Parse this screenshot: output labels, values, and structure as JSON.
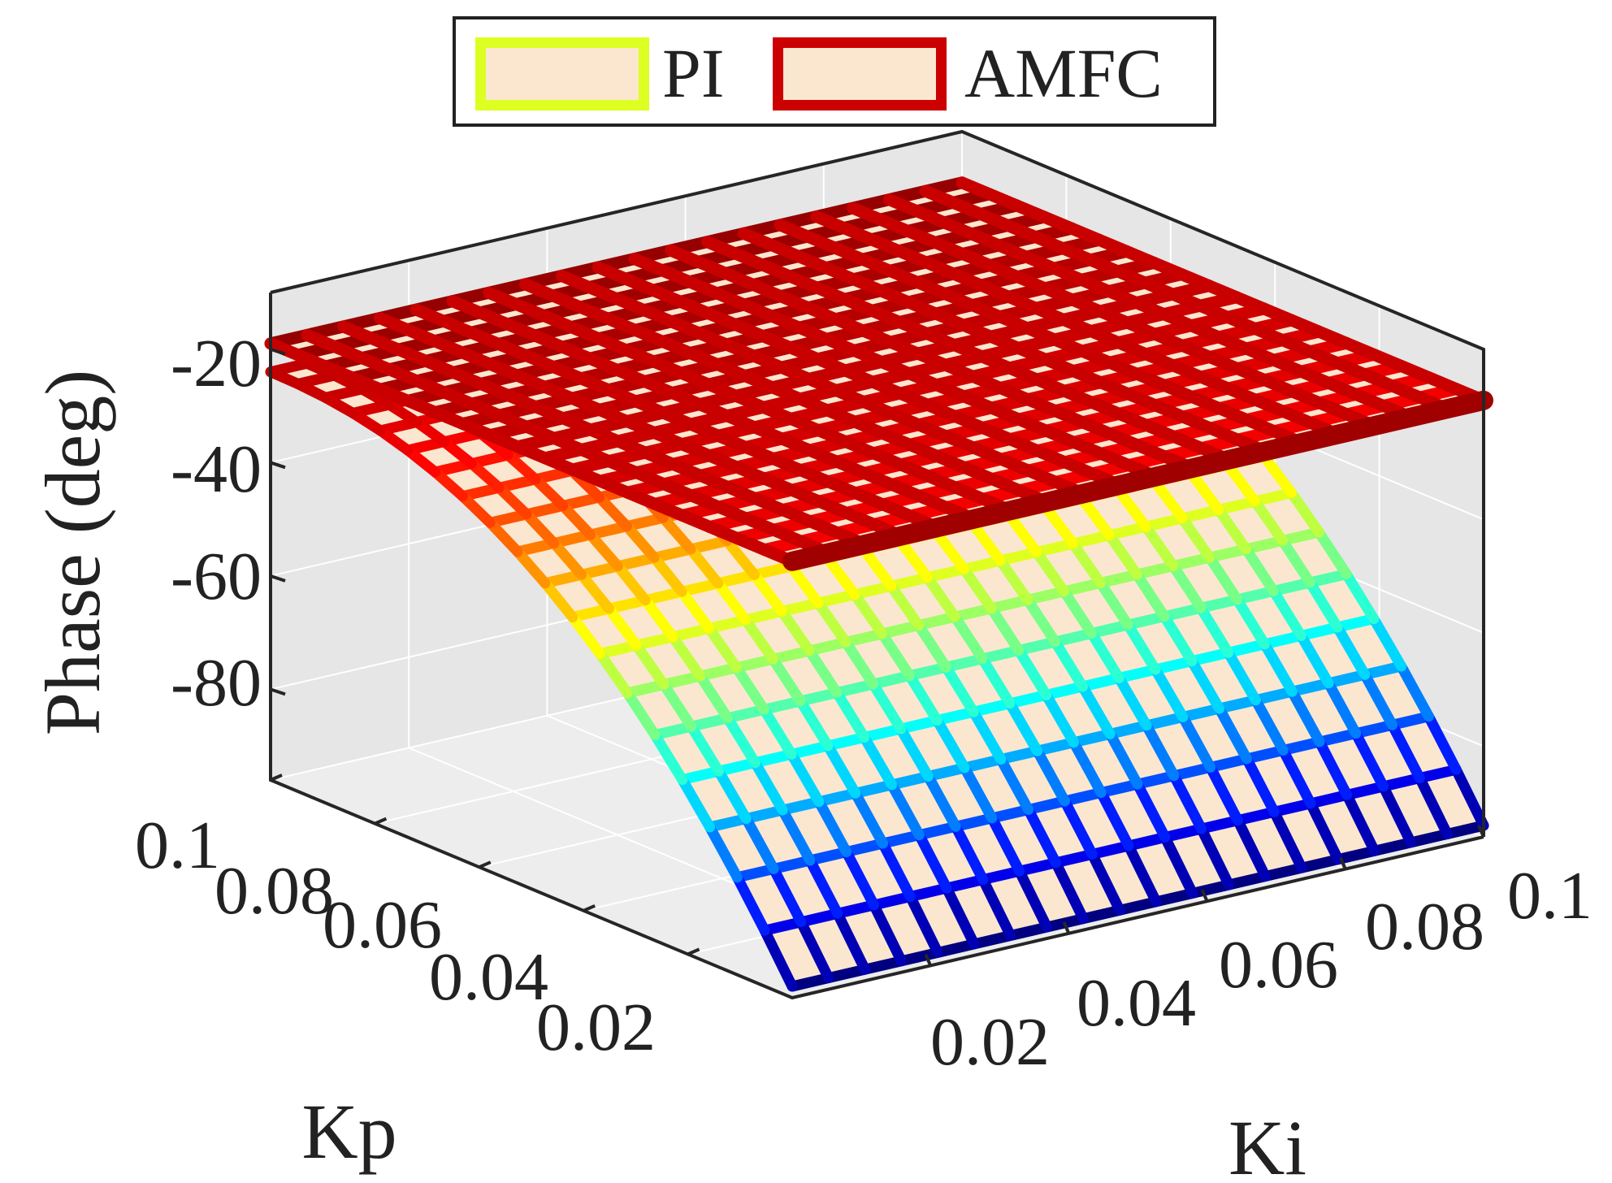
{
  "chart_data": {
    "type": "surface3d",
    "title": "",
    "xlabel": "Kp",
    "ylabel": "Ki",
    "zlabel": "Phase (deg)",
    "x_ticks": [
      "0.02",
      "0.04",
      "0.06",
      "0.08",
      "0.1"
    ],
    "y_ticks": [
      "0.02",
      "0.04",
      "0.06",
      "0.08",
      "0.1"
    ],
    "z_ticks": [
      "-20",
      "-40",
      "-60",
      "-80"
    ],
    "xlim": [
      0,
      0.1
    ],
    "ylim": [
      0,
      0.1
    ],
    "zlim": [
      -96,
      -10
    ],
    "legend_position": "top-center",
    "colormap": "jet",
    "series": [
      {
        "name": "PI",
        "legend_edge_color": "#DDFF22",
        "legend_face_color": "#FBE7CF",
        "description_points": [
          {
            "Kp": 0.1,
            "Ki": 0.0,
            "phase": -24
          },
          {
            "Kp": 0.0,
            "Ki": 0.0,
            "phase": -94
          },
          {
            "Kp": 0.0,
            "Ki": 0.1,
            "phase": -94
          },
          {
            "Kp": 0.1,
            "Ki": 0.1,
            "phase": -24
          }
        ]
      },
      {
        "name": "AMFC",
        "legend_edge_color": "#CC0000",
        "legend_face_color": "#FBE7CF",
        "description_points": [
          {
            "Kp": 0.1,
            "Ki": 0.0,
            "phase": -19
          },
          {
            "Kp": 0.0,
            "Ki": 0.0,
            "phase": -19
          },
          {
            "Kp": 0.0,
            "Ki": 0.1,
            "phase": -19
          },
          {
            "Kp": 0.1,
            "Ki": 0.1,
            "phase": -19
          }
        ]
      }
    ]
  }
}
